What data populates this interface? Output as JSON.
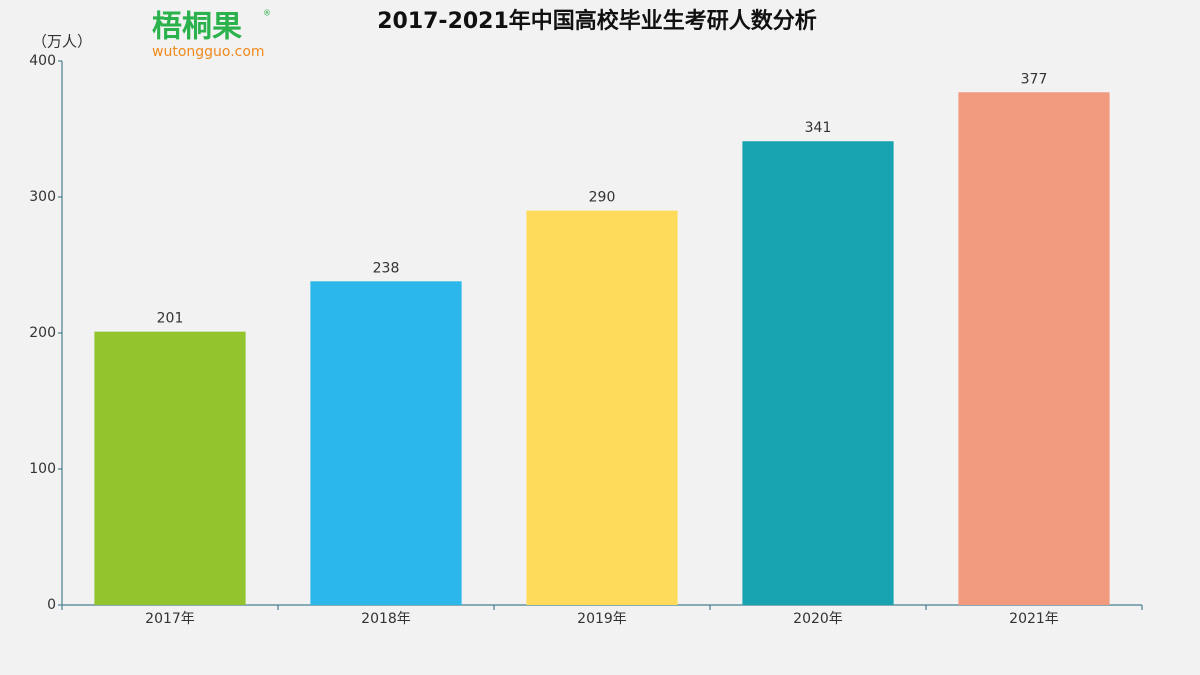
{
  "logo": {
    "name": "梧桐果",
    "mark": "®",
    "url": "wutongguo.com"
  },
  "chart_data": {
    "type": "bar",
    "title": "2017-2021年中国高校毕业生考研人数分析",
    "ylabel": "（万人）",
    "categories": [
      "2017年",
      "2018年",
      "2019年",
      "2020年",
      "2021年"
    ],
    "values": [
      201,
      238,
      290,
      341,
      377
    ],
    "colors": [
      "#93c42e",
      "#2bb7ea",
      "#fedb5b",
      "#17a4b0",
      "#f29a7d"
    ],
    "ylim": [
      0,
      400
    ],
    "yticks": [
      0,
      100,
      200,
      300,
      400
    ],
    "grid": false
  }
}
